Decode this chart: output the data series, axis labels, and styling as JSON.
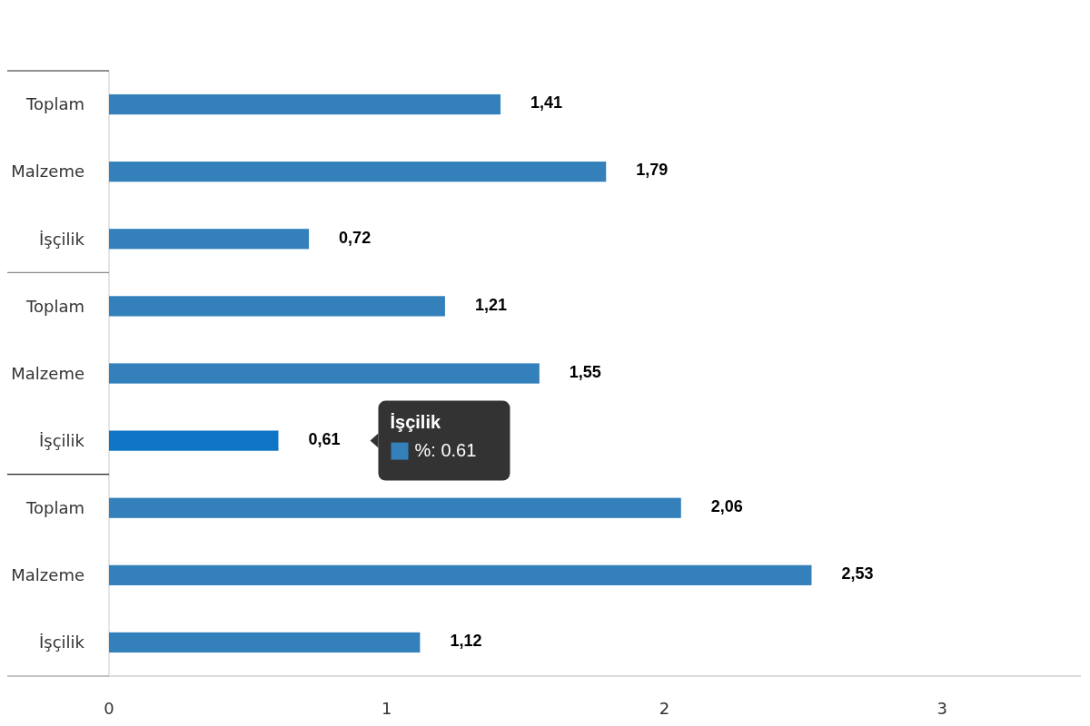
{
  "chart_data": {
    "type": "bar",
    "orientation": "horizontal",
    "categories": [
      "Toplam",
      "Malzeme",
      "İşçilik",
      "Toplam",
      "Malzeme",
      "İşçilik",
      "Toplam",
      "Malzeme",
      "İşçilik"
    ],
    "values": [
      1.41,
      1.79,
      0.72,
      1.21,
      1.55,
      0.61,
      2.06,
      2.53,
      1.12
    ],
    "colors": [
      "#3380bb",
      "#3380bb",
      "#3380bb",
      "#3380bb",
      "#3380bb",
      "#0f75c5",
      "#3380bb",
      "#3380bb",
      "#3380bb"
    ],
    "value_labels": [
      "1,41",
      "1,79",
      "0,72",
      "1,21",
      "1,55",
      "0,61",
      "2,06",
      "2,53",
      "1,12"
    ],
    "xlim": [
      0,
      3.5
    ],
    "xticks": [
      0,
      1,
      2,
      3
    ],
    "annotations": [
      "İşçilik",
      "%: 0.61"
    ]
  }
}
